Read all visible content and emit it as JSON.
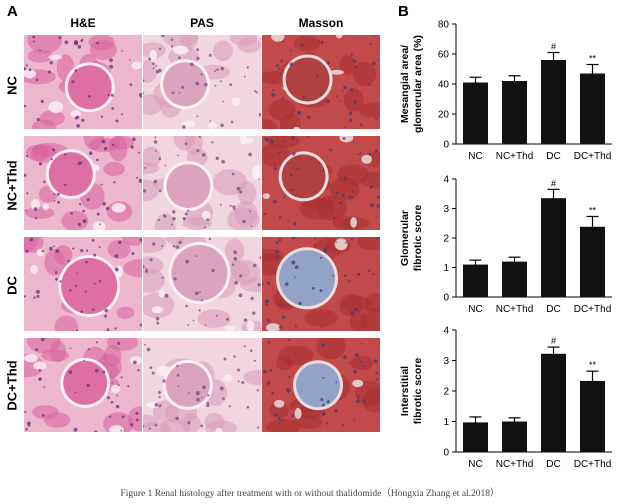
{
  "panel_a": {
    "letter": "A",
    "columns": [
      "H&E",
      "PAS",
      "Masson"
    ],
    "rows": [
      "NC",
      "NC+Thd",
      "DC",
      "DC+Thd"
    ]
  },
  "panel_b": {
    "letter": "B"
  },
  "stain_colors": {
    "he": {
      "bg": "#ecb7cc",
      "tissue": "#d9609a",
      "nuclei": "#6a2f7e",
      "lumen": "#fbeef4"
    },
    "pas": {
      "bg": "#f1d5df",
      "tissue": "#d89ab8",
      "nuclei": "#7a4a86",
      "lumen": "#fbf1f5"
    },
    "masson": {
      "bg": "#c24a4a",
      "tissue": "#a8302f",
      "nuclei": "#4c3a6e",
      "lumen": "#eadede",
      "fibrosis": "#8a9cc4"
    }
  },
  "chart_data": [
    {
      "type": "bar",
      "categories": [
        "NC",
        "NC+Thd",
        "DC",
        "DC+Thd"
      ],
      "values": [
        41,
        42,
        56,
        47
      ],
      "errors": [
        3.5,
        3.5,
        5,
        6
      ],
      "annotations": [
        "",
        "",
        "#",
        "**"
      ],
      "ylabel": "Mesangial area/ glomerular area (%)",
      "ylabel_lines": [
        "Mesangial area/",
        "glomerular area (%)"
      ],
      "ylim": [
        0,
        80
      ],
      "yticks": [
        0,
        20,
        40,
        60,
        80
      ],
      "bar_color": "#111111"
    },
    {
      "type": "bar",
      "categories": [
        "NC",
        "NC+Thd",
        "DC",
        "DC+Thd"
      ],
      "values": [
        1.1,
        1.2,
        3.35,
        2.38
      ],
      "errors": [
        0.15,
        0.15,
        0.3,
        0.35
      ],
      "annotations": [
        "",
        "",
        "#",
        "**"
      ],
      "ylabel": "Glomerular fibrotic score",
      "ylabel_lines": [
        "Glomerular",
        "fibrotic score"
      ],
      "ylim": [
        0,
        4
      ],
      "yticks": [
        0,
        1,
        2,
        3,
        4
      ],
      "bar_color": "#111111"
    },
    {
      "type": "bar",
      "categories": [
        "NC",
        "NC+Thd",
        "DC",
        "DC+Thd"
      ],
      "values": [
        0.97,
        1.0,
        3.22,
        2.33
      ],
      "errors": [
        0.18,
        0.12,
        0.22,
        0.32
      ],
      "annotations": [
        "",
        "",
        "#",
        "**"
      ],
      "ylabel": "Interstitial fibrotic score",
      "ylabel_lines": [
        "Interstitial",
        "fibrotic score"
      ],
      "ylim": [
        0,
        4
      ],
      "yticks": [
        0,
        1,
        2,
        3,
        4
      ],
      "bar_color": "#111111"
    }
  ],
  "caption": "Figure 1 Renal histology after treatment with or without thalidomide（Hongxia Zhang et al.2018）"
}
